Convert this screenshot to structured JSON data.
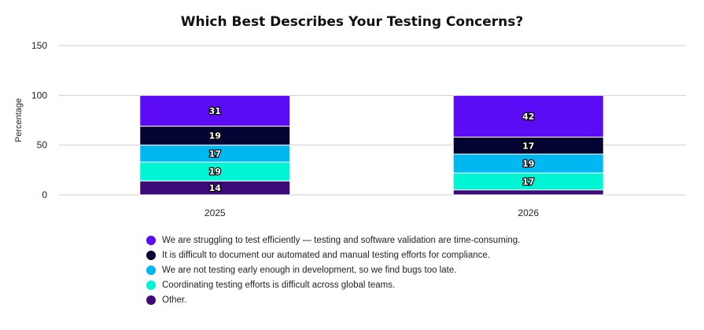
{
  "chart_data": {
    "type": "bar",
    "stacked": true,
    "title": "Which Best Describes Your Testing Concerns?",
    "xlabel": "",
    "ylabel": "Percentage",
    "ylim": [
      0,
      150
    ],
    "yticks": [
      0,
      50,
      100,
      150
    ],
    "grid": true,
    "legend_position": "bottom",
    "categories": [
      "2025",
      "2026"
    ],
    "series": [
      {
        "name": "Other.",
        "color": "#3d0a7a",
        "values": [
          14,
          5
        ],
        "labels": [
          "14",
          ""
        ]
      },
      {
        "name": "Coordinating testing efforts is difficult across global teams.",
        "color": "#00f5d4",
        "values": [
          19,
          17
        ],
        "labels": [
          "19",
          "17"
        ]
      },
      {
        "name": "We are not testing early enough in development, so we find bugs too late.",
        "color": "#00b8f0",
        "values": [
          17,
          19
        ],
        "labels": [
          "17",
          "19"
        ]
      },
      {
        "name": "It is difficult to document our automated and manual testing efforts for compliance.",
        "color": "#050533",
        "values": [
          19,
          17
        ],
        "labels": [
          "19",
          "17"
        ]
      },
      {
        "name": "We are struggling to test efficiently — testing and software validation are time-consuming.",
        "color": "#5b0cf5",
        "values": [
          31,
          42
        ],
        "labels": [
          "31",
          "42"
        ]
      }
    ]
  }
}
